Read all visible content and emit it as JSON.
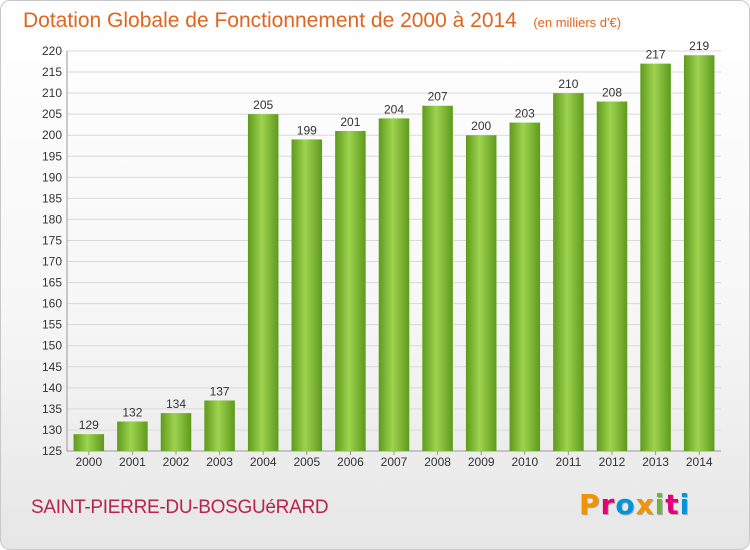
{
  "header": {
    "title": "Dotation Globale de Fonctionnement de 2000 à 2014",
    "unit": "(en milliers d'€)"
  },
  "footer": {
    "commune": "SAINT-PIERRE-DU-BOSGUéRARD",
    "logo_text": "Proxiti"
  },
  "colors": {
    "title": "#e0661f",
    "commune": "#b5244f",
    "bar_light": "#9dd34f",
    "bar_dark": "#5f9a1d",
    "grid": "#d9d9d9",
    "axis_text": "#333333",
    "logo": [
      "#f29400",
      "#e2007a",
      "#0095d9",
      "#f29400",
      "#6db33f",
      "#e2007a",
      "#0095d9"
    ]
  },
  "chart_data": {
    "type": "bar",
    "categories": [
      "2000",
      "2001",
      "2002",
      "2003",
      "2004",
      "2005",
      "2006",
      "2007",
      "2008",
      "2009",
      "2010",
      "2011",
      "2012",
      "2013",
      "2014"
    ],
    "values": [
      129,
      132,
      134,
      137,
      205,
      199,
      201,
      204,
      207,
      200,
      203,
      210,
      208,
      217,
      219
    ],
    "data_labels": [
      "129",
      "132",
      "134",
      "137",
      "205",
      "199",
      "201",
      "204",
      "207",
      "200",
      "203",
      "210",
      "208",
      "217",
      "219"
    ],
    "y_ticks": [
      "125",
      "130",
      "135",
      "140",
      "145",
      "150",
      "155",
      "160",
      "165",
      "170",
      "175",
      "180",
      "185",
      "190",
      "195",
      "200",
      "205",
      "210",
      "215",
      "220"
    ],
    "ylim": [
      125,
      220
    ],
    "grid": true,
    "legend": false
  }
}
